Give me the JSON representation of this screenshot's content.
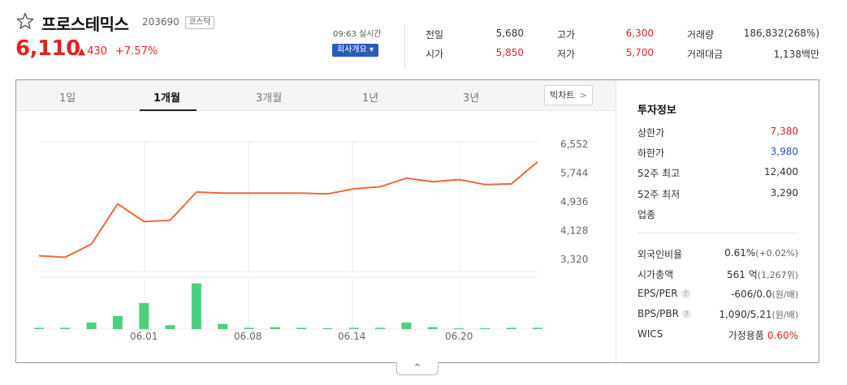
{
  "stock": {
    "name": "프로스테믹스",
    "code": "203690",
    "market": "코스닥",
    "price": "6,110",
    "change_arrow": "▲",
    "change": "430",
    "rate": "+7.57%",
    "time": "09:63 실시간",
    "company_btn": "회사개요",
    "company_btn_arrow": "▾"
  },
  "quotes": [
    {
      "label": "전일",
      "value": "5,680"
    },
    {
      "label": "고가",
      "value": "6,300"
    },
    {
      "label": "거래량",
      "value": "186,832(268%)"
    },
    {
      "label": "시가",
      "value": "5,850"
    },
    {
      "label": "저가",
      "value": "5,700"
    },
    {
      "label": "거래대금",
      "value": "1,138백만"
    }
  ],
  "tabs": [
    "1일",
    "1개월",
    "3개월",
    "1년",
    "3년"
  ],
  "active_tab": "1개월",
  "big_chart": {
    "label": "빅차트",
    "arrow": ">"
  },
  "chart_data": {
    "type": "line",
    "x_ticks": [
      "06.01",
      "06.08",
      "06.14",
      "06.20"
    ],
    "y_ticks": [
      "6,552",
      "5,744",
      "4,936",
      "4,128",
      "3,320"
    ],
    "ylim": [
      3320,
      6552
    ],
    "series": [
      {
        "values": [
          3420,
          3380,
          3750,
          4880,
          4380,
          4420,
          5210,
          5180,
          5180,
          5180,
          5180,
          5160,
          5300,
          5360,
          5600,
          5500,
          5560,
          5420,
          5440,
          6060
        ]
      }
    ],
    "volume": [
      1,
      1,
      5,
      10,
      20,
      3,
      35,
      4,
      1,
      1.5,
      1,
      0.5,
      1,
      1,
      5,
      1.5,
      0.5,
      0.5,
      1,
      1
    ],
    "ymax_volume": 36,
    "line_color": "#f2663a",
    "bar_color": "#4cd07d",
    "grid": true
  },
  "invest": {
    "title": "투자정보",
    "rows": [
      {
        "label": "상한가",
        "value": "7,380",
        "color": "#e0241f"
      },
      {
        "label": "하한가",
        "value": "3,980",
        "color": "#2a52be"
      },
      {
        "label": "52주 최고",
        "value": "12,400",
        "color": "#333"
      },
      {
        "label": "52주 최저",
        "value": "3,290",
        "color": "#333"
      },
      {
        "label": "업종",
        "value": "",
        "color": "#333"
      }
    ],
    "rows2": [
      {
        "label": "외국인비율",
        "value": "0.61%",
        "sub": "(+0.02%)",
        "help": false
      },
      {
        "label": "시가총액",
        "value": "561 억",
        "sub": "(1,267위)",
        "help": false
      },
      {
        "label": "EPS/PER",
        "value": "-606/0.0",
        "sub": "(원/배)",
        "help": true
      },
      {
        "label": "BPS/PBR",
        "value": "1,090/5.21",
        "sub": "(원/배)",
        "help": true
      },
      {
        "label": "WICS",
        "value": "가정용품",
        "sub": "0.60%",
        "help": false
      }
    ]
  },
  "toggle": "^"
}
